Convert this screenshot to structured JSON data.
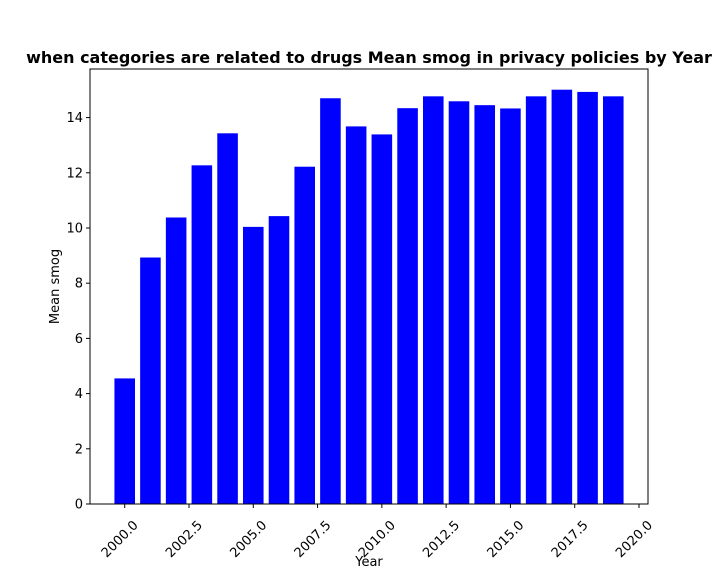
{
  "chart_data": {
    "type": "bar",
    "title": "when categories are related to drugs Mean smog in privacy policies by Year",
    "xlabel": "Year",
    "ylabel": "Mean smog",
    "x": [
      2000,
      2001,
      2002,
      2003,
      2004,
      2005,
      2006,
      2007,
      2008,
      2009,
      2010,
      2011,
      2012,
      2013,
      2014,
      2015,
      2016,
      2017,
      2018,
      2019
    ],
    "values": [
      4.55,
      8.93,
      10.38,
      12.27,
      13.43,
      10.04,
      10.43,
      12.22,
      14.7,
      13.68,
      13.39,
      14.34,
      14.77,
      14.59,
      14.45,
      14.33,
      14.77,
      15.01,
      14.93,
      14.77
    ],
    "xlim": [
      1998.65,
      2020.35
    ],
    "ylim": [
      0,
      15.76
    ],
    "xticks": [
      2000.0,
      2002.5,
      2005.0,
      2007.5,
      2010.0,
      2012.5,
      2015.0,
      2017.5,
      2020.0
    ],
    "xtick_labels": [
      "2000.0",
      "2002.5",
      "2005.0",
      "2007.5",
      "2010.0",
      "2012.5",
      "2015.0",
      "2017.5",
      "2020.0"
    ],
    "yticks": [
      0,
      2,
      4,
      6,
      8,
      10,
      12,
      14
    ],
    "ytick_labels": [
      "0",
      "2",
      "4",
      "6",
      "8",
      "10",
      "12",
      "14"
    ],
    "bar_width": 0.8,
    "bar_color": "#0000ff",
    "grid": false,
    "legend": "none"
  }
}
